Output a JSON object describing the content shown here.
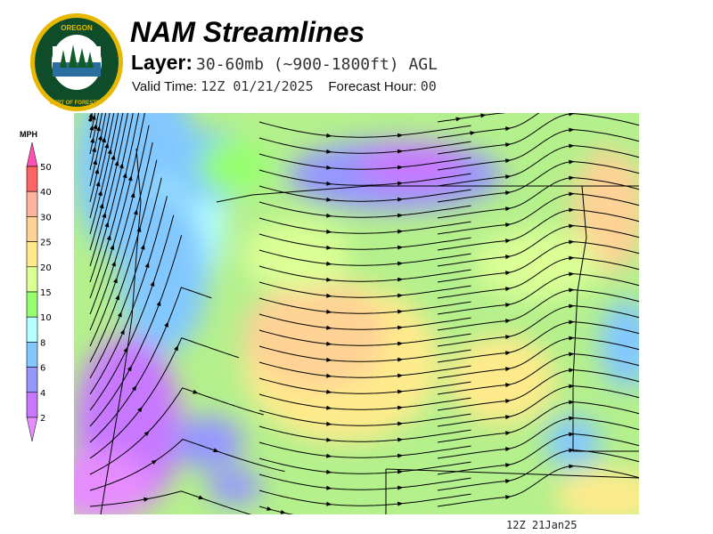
{
  "header": {
    "title": "NAM Streamlines",
    "layer_label": "Layer:",
    "layer_value": "30-60mb (~900-1800ft) AGL",
    "valid_time_label": "Valid Time:",
    "valid_time_value": "12Z 01/21/2025",
    "forecast_hour_label": "Forecast Hour:",
    "forecast_hour_value": "00"
  },
  "logo": {
    "text_top": "OREGON",
    "text_bottom": "DEPARTMENT OF FORESTRY"
  },
  "legend": {
    "unit": "MPH",
    "ticks": [
      "50",
      "40",
      "30",
      "25",
      "20",
      "15",
      "10",
      "8",
      "6",
      "4",
      "2"
    ],
    "colors_top_to_bottom": [
      "#ff6464",
      "#ffb4a0",
      "#ffd296",
      "#ffeb8c",
      "#dcff96",
      "#96ff6e",
      "#b4ffff",
      "#82c8ff",
      "#9696ff",
      "#c878ff"
    ],
    "over_color": "#ff50b4",
    "under_color": "#e68cff"
  },
  "footer": {
    "stamp": "12Z 21Jan25"
  }
}
